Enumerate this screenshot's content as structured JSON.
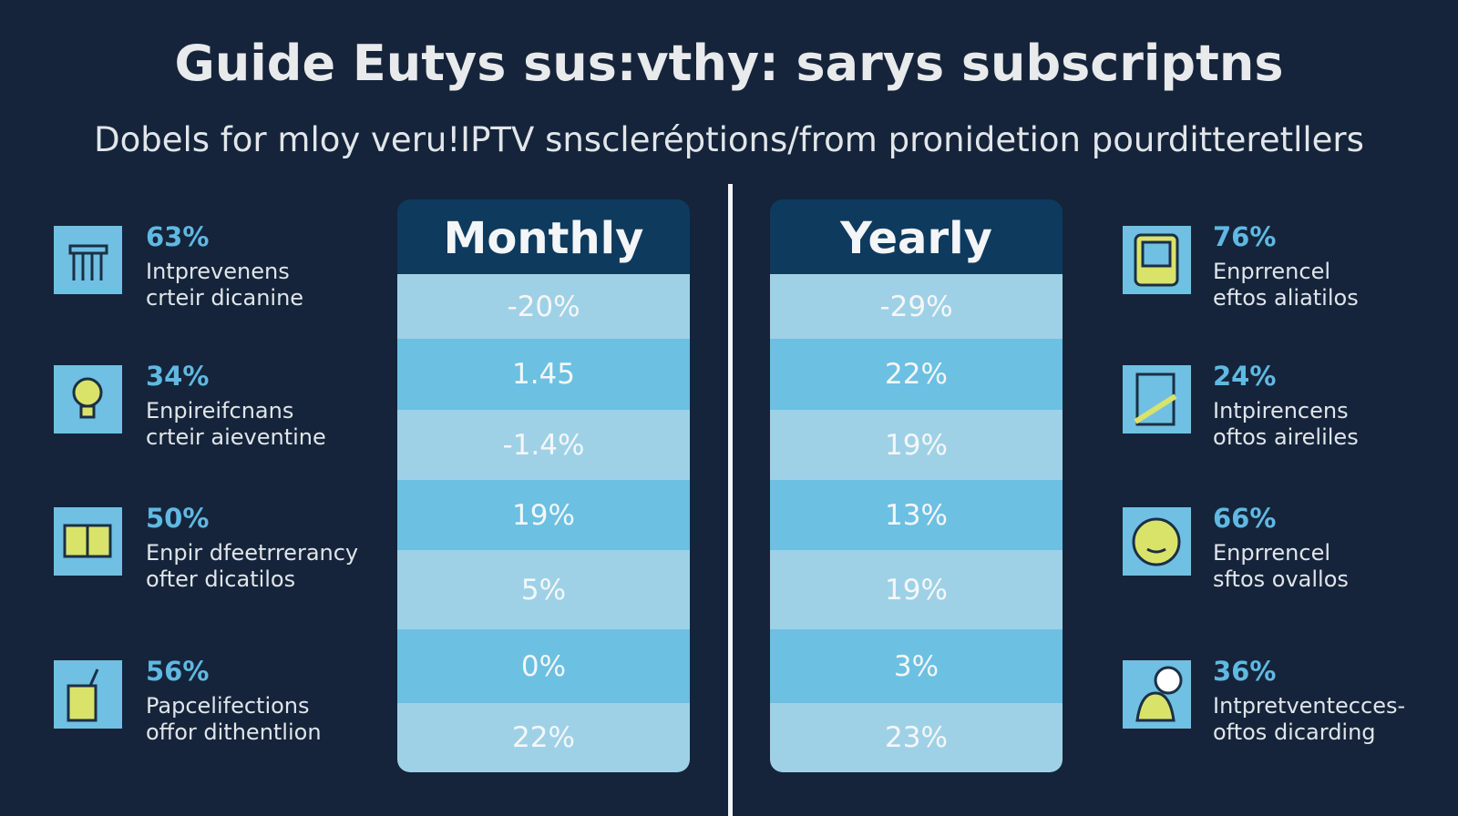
{
  "header": {
    "title": "Guide Eutys sus:vthy: sarys subscriptns",
    "subtitle": "Dobels for mloy veru!IPTV snscleréptions/from pronidetion pourditteretllers"
  },
  "left_stats": [
    {
      "value": "63%",
      "line1": "Intprevenens",
      "line2": "crteir dicanine"
    },
    {
      "value": "34%",
      "line1": "Enpireifcnans",
      "line2": "crteir aieventine"
    },
    {
      "value": "50%",
      "line1": "Enpir dfeetrrerancy",
      "line2": "ofter dicatilos"
    },
    {
      "value": "56%",
      "line1": "Papcelifections",
      "line2": "offor dithentlion"
    }
  ],
  "tables": [
    {
      "header": "Monthly",
      "rows": [
        "-20%",
        "1.45",
        "-1.4%",
        "19%",
        "5%",
        "0%",
        "22%"
      ]
    },
    {
      "header": "Yearly",
      "rows": [
        "-29%",
        "22%",
        "19%",
        "13%",
        "19%",
        "3%",
        "23%"
      ]
    }
  ],
  "right_stats": [
    {
      "value": "76%",
      "line1": "Enprrencel",
      "line2": "eftos aliatilos"
    },
    {
      "value": "24%",
      "line1": "Intpirencens",
      "line2": "oftos aireliles"
    },
    {
      "value": "66%",
      "line1": "Enprrencel",
      "line2": "sftos ovallos"
    },
    {
      "value": "36%",
      "line1": "Intpretventecces-",
      "line2": "oftos dicarding"
    }
  ]
}
